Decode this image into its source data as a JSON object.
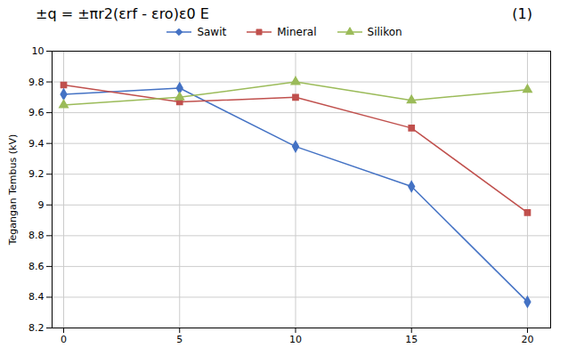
{
  "chart_data": {
    "type": "line",
    "title": "±q = ±πr2(εrf - εro)ε0 E",
    "annotations": [
      "(1)"
    ],
    "ylabel": "Tegangan Tembus (kV)",
    "x": [
      0,
      5,
      10,
      15,
      20
    ],
    "series": [
      {
        "name": "Sawit",
        "color": "#4472C4",
        "marker": "diamond",
        "values": [
          9.72,
          9.76,
          9.38,
          9.12,
          8.37
        ]
      },
      {
        "name": "Mineral",
        "color": "#C0504D",
        "marker": "square",
        "values": [
          9.78,
          9.67,
          9.7,
          9.5,
          8.95
        ]
      },
      {
        "name": "Silikon",
        "color": "#9BBB59",
        "marker": "triangle",
        "values": [
          9.65,
          9.7,
          9.8,
          9.68,
          9.75
        ]
      }
    ],
    "xlim": [
      -0.5,
      21.0
    ],
    "xticks": [
      0,
      5,
      10,
      15,
      20
    ],
    "ylim": [
      8.2,
      10.0
    ],
    "yticks": [
      8.2,
      8.4,
      8.6,
      8.8,
      9,
      9.2,
      9.4,
      9.6,
      9.8,
      10
    ],
    "grid": true,
    "legend": "top"
  }
}
